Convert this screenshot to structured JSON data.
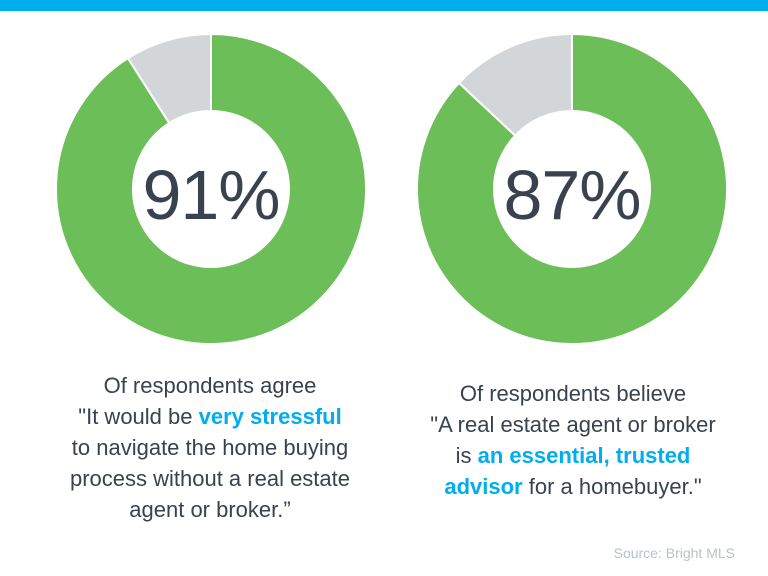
{
  "colors": {
    "green": "#6CBE58",
    "slice_gray": "#D2D6D9",
    "dark_text": "#39424E",
    "cyan_accent": "#00ADEE",
    "source_gray": "#B9C2C9",
    "background": "#FFFFFF"
  },
  "top_bar": {
    "color": "#00ADEE"
  },
  "chart_data": [
    {
      "type": "pie",
      "style": "donut",
      "center_label": "91%",
      "slices": [
        {
          "label": "agree",
          "value": 91,
          "color": "#6CBE58"
        },
        {
          "label": "remainder",
          "value": 9,
          "color": "#D2D6D9"
        }
      ],
      "start_angle_deg": 0,
      "direction": "clockwise",
      "caption_plain": "Of respondents agree \"It would be very stressful to navigate the home buying process without a real estate agent or broker.”"
    },
    {
      "type": "pie",
      "style": "donut",
      "center_label": "87%",
      "slices": [
        {
          "label": "believe",
          "value": 87,
          "color": "#6CBE58"
        },
        {
          "label": "remainder",
          "value": 13,
          "color": "#D2D6D9"
        }
      ],
      "start_angle_deg": 0,
      "direction": "clockwise",
      "caption_plain": "Of respondents believe \"A real estate agent or broker is an essential, trusted advisor for a homebuyer.\""
    }
  ],
  "charts": [
    {
      "percent": 91,
      "label": "91%",
      "caption_lines": [
        [
          {
            "t": "Of respondents agree"
          }
        ],
        [
          {
            "t": "\"It would be "
          },
          {
            "t": "very stressful",
            "hl": true
          }
        ],
        [
          {
            "t": "to navigate the home buying"
          }
        ],
        [
          {
            "t": "process without a real estate"
          }
        ],
        [
          {
            "t": "agent or broker.”"
          }
        ]
      ]
    },
    {
      "percent": 87,
      "label": "87%",
      "caption_lines": [
        [
          {
            "t": "Of respondents believe"
          }
        ],
        [
          {
            "t": "\"A real estate agent or broker"
          }
        ],
        [
          {
            "t": "is "
          },
          {
            "t": "an essential, trusted",
            "hl": true
          }
        ],
        [
          {
            "t": "advisor",
            "hl": true
          },
          {
            "t": " for a homebuyer.\""
          }
        ]
      ]
    }
  ],
  "source": {
    "label": "Source: Bright MLS"
  }
}
